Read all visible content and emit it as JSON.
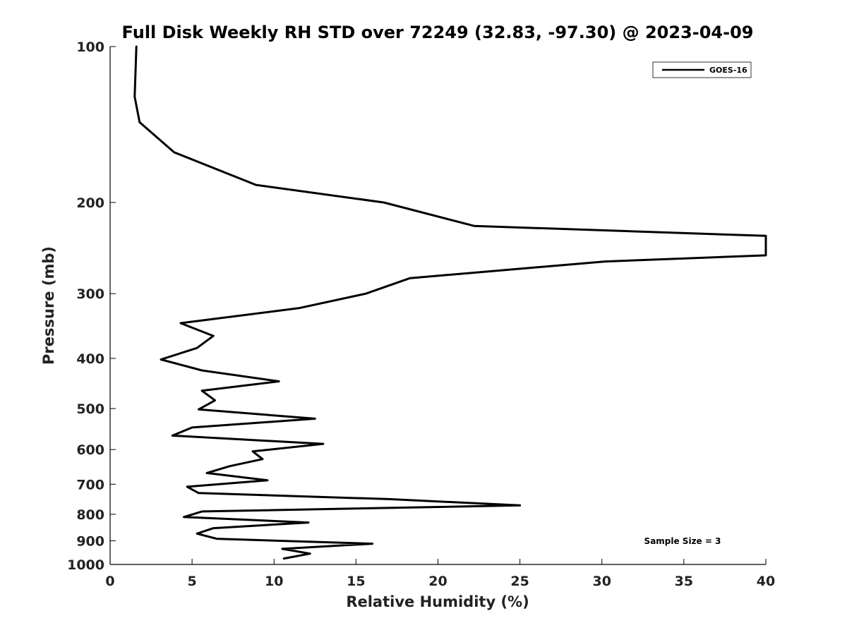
{
  "chart_data": {
    "type": "line",
    "title": "Full Disk Weekly RH STD over 72249 (32.83, -97.30) @ 2023-04-09",
    "xlabel": "Relative Humidity (%)",
    "ylabel": "Pressure (mb)",
    "xlim": [
      0,
      40
    ],
    "ylim": [
      100,
      1000
    ],
    "y_scale": "log",
    "y_inverted": true,
    "x_ticks": [
      0,
      5,
      10,
      15,
      20,
      25,
      30,
      35,
      40
    ],
    "y_ticks": [
      100,
      200,
      300,
      400,
      500,
      600,
      700,
      800,
      900,
      1000
    ],
    "grid": false,
    "legend_position": "top-right",
    "annotation": "Sample Size = 3",
    "series": [
      {
        "name": "GOES-16",
        "color": "#000000",
        "points": [
          [
            1.6,
            100
          ],
          [
            1.5,
            125
          ],
          [
            1.8,
            140
          ],
          [
            3.9,
            160
          ],
          [
            8.9,
            185
          ],
          [
            16.7,
            200
          ],
          [
            22.2,
            222
          ],
          [
            40.0,
            232
          ],
          [
            40.0,
            253
          ],
          [
            30.2,
            260
          ],
          [
            18.3,
            280
          ],
          [
            15.6,
            300
          ],
          [
            11.5,
            320
          ],
          [
            4.3,
            342
          ],
          [
            6.3,
            362
          ],
          [
            5.3,
            382
          ],
          [
            3.1,
            402
          ],
          [
            5.6,
            422
          ],
          [
            10.3,
            443
          ],
          [
            5.6,
            462
          ],
          [
            6.4,
            482
          ],
          [
            5.4,
            502
          ],
          [
            12.5,
            523
          ],
          [
            5.0,
            544
          ],
          [
            3.8,
            564
          ],
          [
            13.0,
            585
          ],
          [
            8.7,
            605
          ],
          [
            9.3,
            626
          ],
          [
            7.3,
            646
          ],
          [
            5.9,
            666
          ],
          [
            9.6,
            688
          ],
          [
            4.7,
            708
          ],
          [
            5.4,
            728
          ],
          [
            17.0,
            748
          ],
          [
            25.0,
            769
          ],
          [
            5.6,
            790
          ],
          [
            4.5,
            810
          ],
          [
            12.1,
            830
          ],
          [
            6.3,
            851
          ],
          [
            5.3,
            872
          ],
          [
            6.5,
            892
          ],
          [
            16.0,
            912
          ],
          [
            10.5,
            933
          ],
          [
            12.2,
            953
          ],
          [
            10.6,
            974
          ]
        ]
      }
    ]
  }
}
